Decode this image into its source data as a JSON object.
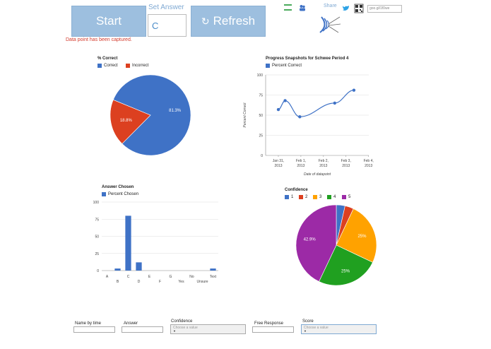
{
  "controls": {
    "start_label": "Start",
    "set_answer_label": "Set Answer",
    "answer_value": "C",
    "refresh_label": "Refresh",
    "status_message": "Data point has been captured.",
    "share_label": "Share",
    "short_link_text": "goo.gl/1f0we"
  },
  "icons": {
    "sheet": "spreadsheet-icon",
    "people": "people-icon",
    "bird": "twitter-bird-icon",
    "qr": "qr-code-icon",
    "logo": "radar-logo-icon",
    "refresh": "refresh-icon"
  },
  "colors": {
    "button_bg": "#9dbfdf",
    "blue": "#3f72c6",
    "red": "#dc4020",
    "orange": "#ffa200",
    "green": "#20a020",
    "purple": "#9c2aa6",
    "status_red": "#d33a2c"
  },
  "chart_data": [
    {
      "type": "pie",
      "title": "% Correct",
      "labels": [
        "Correct",
        "Incorrect"
      ],
      "values": [
        81.3,
        18.8
      ],
      "slice_labels": [
        "81.3%",
        "18.8%"
      ],
      "colors": [
        "#3f72c6",
        "#dc4020"
      ],
      "legend": "top"
    },
    {
      "type": "line",
      "title": "Progress Snapshots for Schwee Period 4",
      "series": [
        {
          "name": "Percent Correct",
          "x": [
            "2013-01-31",
            "2013-02-01",
            "2013-02-02",
            "2013-02-03",
            "2013-02-04"
          ],
          "values": [
            57,
            68,
            48,
            65,
            81
          ]
        }
      ],
      "x_points": [
        0.0,
        0.3,
        0.95,
        2.5,
        3.35
      ],
      "point_values": [
        57,
        68,
        48,
        65,
        81
      ],
      "xticks": [
        "Jan 31, 2013",
        "Feb 1, 2013",
        "Feb 2, 2013",
        "Feb 3, 2013",
        "Feb 4, 2013"
      ],
      "yticks": [
        0,
        25,
        50,
        75,
        100
      ],
      "ylim": [
        0,
        100
      ],
      "ylabel": "Percent Correct",
      "xlabel": "Date of datapoint",
      "grid": true,
      "legend": "top"
    },
    {
      "type": "bar",
      "title": "Answer Chosen",
      "categories": [
        "A",
        "B",
        "C",
        "D",
        "E",
        "F",
        "G",
        "Yes",
        "No",
        "Unsure",
        "Text"
      ],
      "series": [
        {
          "name": "Percent Chosen",
          "values": [
            0,
            3,
            80,
            12,
            0,
            0,
            0,
            0,
            0,
            0,
            3
          ]
        }
      ],
      "yticks": [
        0,
        25,
        50,
        75,
        100
      ],
      "ylim": [
        0,
        100
      ],
      "grid": true,
      "legend": "top"
    },
    {
      "type": "pie",
      "title": "Confidence",
      "labels": [
        "1",
        "2",
        "3",
        "4",
        "5"
      ],
      "values": [
        3.5,
        3.5,
        25,
        25,
        42.9
      ],
      "slice_labels": [
        "",
        "",
        "25%",
        "25%",
        "42.9%"
      ],
      "colors": [
        "#3f72c6",
        "#dc4020",
        "#ffa200",
        "#20a020",
        "#9c2aa6"
      ],
      "legend": "top"
    }
  ],
  "filters": {
    "name_label": "Name by time",
    "answer_label": "Answer",
    "confidence_label": "Confidence",
    "confidence_placeholder": "Choose a value",
    "free_response_label": "Free Response",
    "score_label": "Score",
    "score_placeholder": "Choose a value"
  }
}
